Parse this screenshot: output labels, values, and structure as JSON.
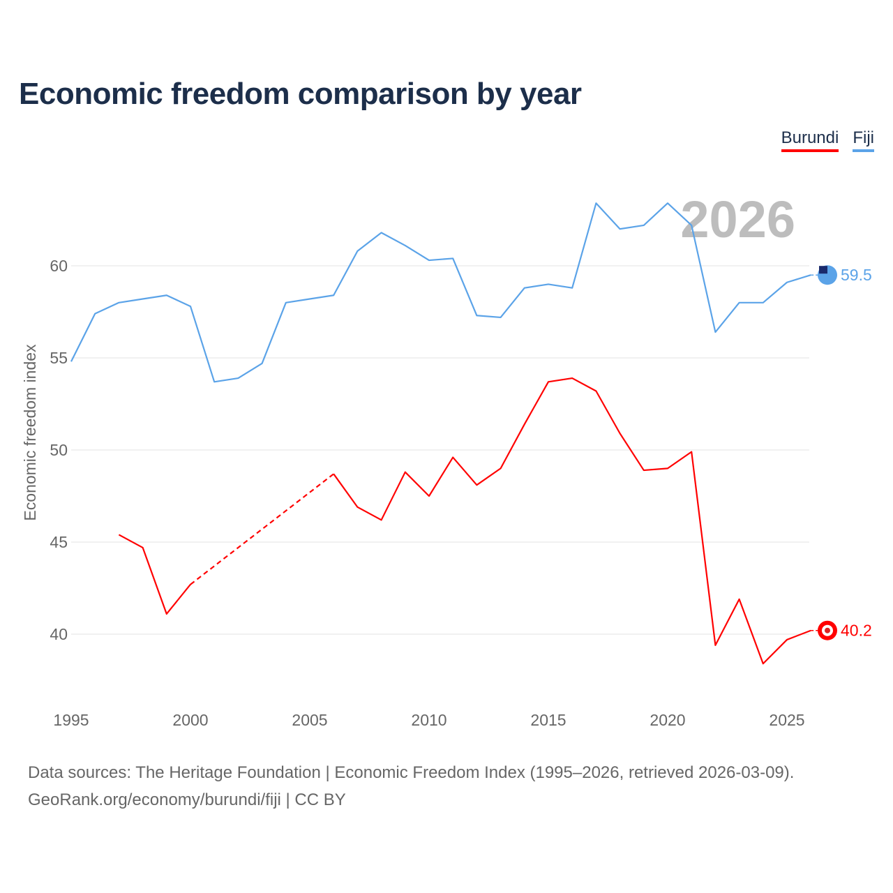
{
  "title": "Economic freedom comparison by year",
  "legend": [
    {
      "name": "Burundi",
      "color": "#ff0000"
    },
    {
      "name": "Fiji",
      "color": "#5ba3e8"
    }
  ],
  "source_line1": "Data sources: The Heritage Foundation | Economic Freedom Index (1995–2026, retrieved 2026-03-09).",
  "source_line2": "GeoRank.org/economy/burundi/fiji | CC BY",
  "chart_data": {
    "type": "line",
    "title": "Economic freedom comparison by year",
    "ylabel": "Economic freedom index",
    "xlabel": "",
    "watermark_year": "2026",
    "xlim": [
      1995,
      2026
    ],
    "ylim": [
      36,
      65
    ],
    "xticks": [
      1995,
      2000,
      2005,
      2010,
      2015,
      2020,
      2025
    ],
    "yticks": [
      40,
      45,
      50,
      55,
      60
    ],
    "grid": true,
    "legend_position": "top-right",
    "series": [
      {
        "name": "Fiji",
        "color": "#5ba3e8",
        "end_label": "59.5",
        "x": [
          1995,
          1996,
          1997,
          1998,
          1999,
          2000,
          2001,
          2002,
          2003,
          2004,
          2005,
          2006,
          2007,
          2008,
          2009,
          2010,
          2011,
          2012,
          2013,
          2014,
          2015,
          2016,
          2017,
          2018,
          2019,
          2020,
          2021,
          2022,
          2023,
          2024,
          2025,
          2026
        ],
        "values": [
          54.8,
          57.4,
          58.0,
          58.2,
          58.4,
          57.8,
          53.7,
          53.9,
          54.7,
          58.0,
          58.2,
          58.4,
          60.8,
          61.8,
          61.1,
          60.3,
          60.4,
          57.3,
          57.2,
          58.8,
          59.0,
          58.8,
          63.4,
          62.0,
          62.2,
          63.4,
          62.2,
          56.4,
          58.0,
          58.0,
          59.1,
          59.5
        ]
      },
      {
        "name": "Burundi",
        "color": "#ff0000",
        "end_label": "40.2",
        "x": [
          1997,
          1998,
          1999,
          2000,
          2006,
          2007,
          2008,
          2009,
          2010,
          2011,
          2012,
          2013,
          2014,
          2015,
          2016,
          2017,
          2018,
          2019,
          2020,
          2021,
          2022,
          2023,
          2024,
          2025,
          2026
        ],
        "values": [
          45.4,
          44.7,
          41.1,
          42.7,
          48.7,
          46.9,
          46.2,
          48.8,
          47.5,
          49.6,
          48.1,
          49.0,
          51.4,
          53.7,
          53.9,
          53.2,
          50.9,
          48.9,
          49.0,
          49.9,
          39.4,
          41.9,
          38.4,
          39.7,
          40.2
        ],
        "gaps": [
          [
            2000,
            2006
          ]
        ]
      }
    ]
  }
}
